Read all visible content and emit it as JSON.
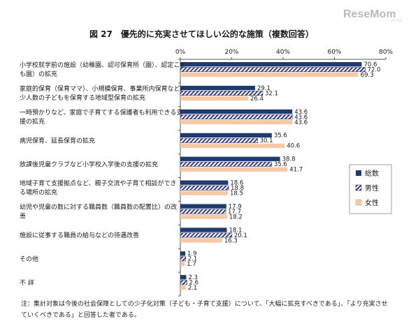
{
  "brand": {
    "name": "ReseMom",
    "tagline": "リセマム"
  },
  "note": "注：集計対象は今後の社会保障としての少子化対策（子ども・子育て支援）について、「大幅に拡充すべきである」、「より充実させていくべきである」と回答した者である。",
  "chart_data": {
    "type": "bar",
    "orientation": "horizontal",
    "title": "図 27　優先的に充実させてほしい公的な施策（複数回答）",
    "xlim": [
      0,
      80
    ],
    "x_ticks": [
      "0%",
      "20%",
      "40%",
      "60%",
      "80%"
    ],
    "x_tick_values": [
      0,
      20,
      40,
      60,
      80
    ],
    "grid": false,
    "legend_position": "right",
    "categories": [
      [
        "小学校就学前の施設（幼稚園、認可保育所（園）、認定こど",
        "も園）の拡充"
      ],
      [
        "家庭的保育（保育ママ）、小規模保育、事業所内保育など、",
        "少人数の子どもを保育する地域型保育の拡充"
      ],
      [
        "一時預かりなど、家庭で子育てする保護者も利用できる支",
        "援の拡充"
      ],
      [
        "病児保育、延長保育の拡充"
      ],
      [
        "放課後児童クラブなど小学校入学後の支援の拡充"
      ],
      [
        "地域子育て支援拠点など、親子交流や子育て相談ができ",
        "る場所の拡充"
      ],
      [
        "幼児や児童の数に対する職員数（職員数の配置比）の改",
        "善"
      ],
      [
        "施設に従事する職員の給与などの待遇改善"
      ],
      [
        "その他"
      ],
      [
        "不 詳"
      ]
    ],
    "series": [
      {
        "name": "総数",
        "color": "#1f3b6e",
        "fill": "solid",
        "values": [
          70.6,
          29.1,
          43.6,
          35.6,
          38.8,
          18.6,
          17.9,
          18.1,
          1.9,
          2.3
        ]
      },
      {
        "name": "男性",
        "color": "#3d3f7a",
        "fill": "hatch",
        "values": [
          72.0,
          32.1,
          43.6,
          30.1,
          35.6,
          18.8,
          17.7,
          20.1,
          2.1,
          2.6
        ]
      },
      {
        "name": "女性",
        "color": "#f6c9a6",
        "fill": "solid",
        "values": [
          69.3,
          26.4,
          43.6,
          40.6,
          41.7,
          18.5,
          18.2,
          16.3,
          1.7,
          2.1
        ]
      }
    ]
  }
}
